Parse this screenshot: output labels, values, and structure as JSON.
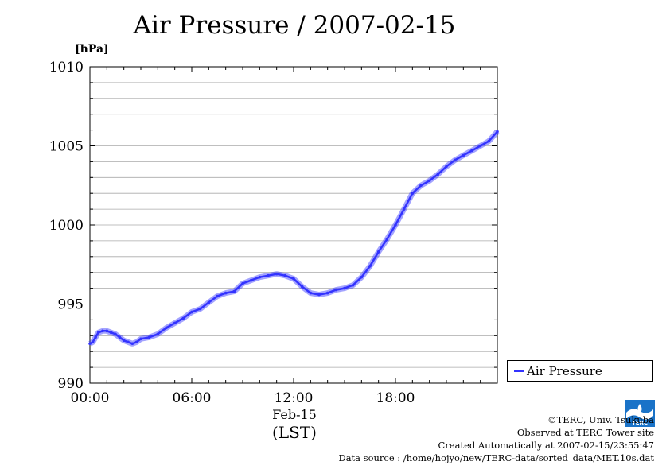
{
  "chart_data": {
    "type": "line",
    "title": "Air Pressure / 2007-02-15",
    "ylabel": "[hPa]",
    "ylim": [
      990,
      1010
    ],
    "yticks": [
      "990",
      "995",
      "1000",
      "1005",
      "1010"
    ],
    "xlim": [
      "00:00",
      "24:00"
    ],
    "xticks": [
      "00:00",
      "06:00",
      "12:00",
      "18:00"
    ],
    "date_label": "Feb-15",
    "xlabel": "(LST)",
    "grid": "horizontal",
    "legend_position": "bottom-right",
    "series": [
      {
        "name": "Air Pressure",
        "color": "#3333ff",
        "points": [
          [
            "00:00",
            992.5
          ],
          [
            "00:10",
            992.6
          ],
          [
            "00:20",
            992.9
          ],
          [
            "00:30",
            993.2
          ],
          [
            "00:45",
            993.3
          ],
          [
            "01:00",
            993.3
          ],
          [
            "01:15",
            993.2
          ],
          [
            "01:30",
            993.1
          ],
          [
            "01:45",
            992.9
          ],
          [
            "02:00",
            992.7
          ],
          [
            "02:15",
            992.6
          ],
          [
            "02:30",
            992.5
          ],
          [
            "02:45",
            992.6
          ],
          [
            "03:00",
            992.8
          ],
          [
            "03:30",
            992.9
          ],
          [
            "04:00",
            993.1
          ],
          [
            "04:30",
            993.5
          ],
          [
            "05:00",
            993.8
          ],
          [
            "05:30",
            994.1
          ],
          [
            "06:00",
            994.5
          ],
          [
            "06:30",
            994.7
          ],
          [
            "07:00",
            995.1
          ],
          [
            "07:30",
            995.5
          ],
          [
            "08:00",
            995.7
          ],
          [
            "08:30",
            995.8
          ],
          [
            "09:00",
            996.3
          ],
          [
            "09:30",
            996.5
          ],
          [
            "10:00",
            996.7
          ],
          [
            "10:30",
            996.8
          ],
          [
            "11:00",
            996.9
          ],
          [
            "11:30",
            996.8
          ],
          [
            "12:00",
            996.6
          ],
          [
            "12:30",
            996.1
          ],
          [
            "13:00",
            995.7
          ],
          [
            "13:30",
            995.6
          ],
          [
            "14:00",
            995.7
          ],
          [
            "14:30",
            995.9
          ],
          [
            "15:00",
            996.0
          ],
          [
            "15:30",
            996.2
          ],
          [
            "16:00",
            996.7
          ],
          [
            "16:30",
            997.4
          ],
          [
            "17:00",
            998.3
          ],
          [
            "17:30",
            999.1
          ],
          [
            "18:00",
            1000.0
          ],
          [
            "18:30",
            1001.0
          ],
          [
            "19:00",
            1002.0
          ],
          [
            "19:30",
            1002.5
          ],
          [
            "20:00",
            1002.8
          ],
          [
            "20:30",
            1003.2
          ],
          [
            "21:00",
            1003.7
          ],
          [
            "21:30",
            1004.1
          ],
          [
            "22:00",
            1004.4
          ],
          [
            "22:30",
            1004.7
          ],
          [
            "23:00",
            1005.0
          ],
          [
            "23:30",
            1005.3
          ],
          [
            "24:00",
            1005.9
          ]
        ]
      }
    ]
  },
  "credits": {
    "copyright": "©TERC, Univ. Tsukuba",
    "observed": "Observed at TERC Tower site",
    "created": "Created Automatically at 2007-02-15/23:55:47",
    "source": "Data source : /home/hojyo/new/TERC-data/sorted_data/MET.10s.dat",
    "logo_text": "TERC"
  }
}
